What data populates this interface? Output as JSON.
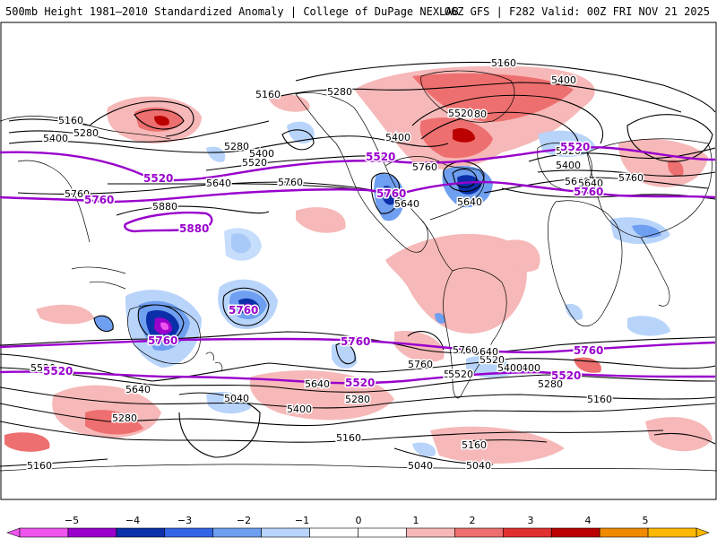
{
  "header": {
    "title": "500mb Height 1981–2010 Standardized Anomaly | College of DuPage NEXLAB",
    "run_info": "06Z GFS | F282 Valid: 00Z FRI NOV 21 2025"
  },
  "colors": {
    "purple": "#9900cc",
    "black": "#000000"
  },
  "colorbar": {
    "ticks": [
      "−5",
      "−4",
      "−3",
      "−2",
      "−1",
      "0",
      "1",
      "2",
      "3",
      "4",
      "5"
    ],
    "colors": [
      "#ee55ee",
      "#9900cc",
      "#0a2fa8",
      "#3366e6",
      "#6f9ff0",
      "#b8d4fa",
      "#ffffff",
      "#ffffff",
      "#f6b8b8",
      "#ee6f6f",
      "#e03030",
      "#bb0000",
      "#f08a00",
      "#ffb800"
    ]
  },
  "contour_labels": [
    {
      "text": "5160"
    },
    {
      "text": "5280"
    },
    {
      "text": "5160"
    },
    {
      "text": "5400"
    },
    {
      "text": "5280"
    },
    {
      "text": "5160"
    },
    {
      "text": "5280"
    },
    {
      "text": "5400"
    },
    {
      "text": "5520"
    },
    {
      "text": "5400"
    },
    {
      "text": "5280"
    },
    {
      "text": "5520"
    },
    {
      "text": "5640"
    },
    {
      "text": "5760"
    },
    {
      "text": "5400"
    },
    {
      "text": "5520"
    },
    {
      "text": "5640"
    },
    {
      "text": "5760"
    },
    {
      "text": "5640"
    },
    {
      "text": "5760"
    },
    {
      "text": "5880"
    },
    {
      "text": "5400"
    },
    {
      "text": "5760"
    },
    {
      "text": "5640"
    },
    {
      "text": "5520"
    },
    {
      "text": "5640"
    },
    {
      "text": "5760"
    },
    {
      "text": "5520"
    },
    {
      "text": "5640"
    },
    {
      "text": "5400"
    },
    {
      "text": "5280"
    },
    {
      "text": "5040"
    },
    {
      "text": "5640"
    },
    {
      "text": "5400"
    },
    {
      "text": "5280"
    },
    {
      "text": "5520"
    },
    {
      "text": "5400"
    },
    {
      "text": "5280"
    },
    {
      "text": "5160"
    },
    {
      "text": "5160"
    },
    {
      "text": "5160"
    },
    {
      "text": "5040"
    },
    {
      "text": "5040"
    },
    {
      "text": "5160"
    },
    {
      "text": "5760"
    },
    {
      "text": "5640"
    },
    {
      "text": "5520"
    }
  ],
  "purple_labels": [
    {
      "text": "5520"
    },
    {
      "text": "5520"
    },
    {
      "text": "5520"
    },
    {
      "text": "5760"
    },
    {
      "text": "5760"
    },
    {
      "text": "5760"
    },
    {
      "text": "5880"
    },
    {
      "text": "5760"
    },
    {
      "text": "5760"
    },
    {
      "text": "5760"
    },
    {
      "text": "5760"
    },
    {
      "text": "5520"
    },
    {
      "text": "5520"
    },
    {
      "text": "5520"
    }
  ]
}
